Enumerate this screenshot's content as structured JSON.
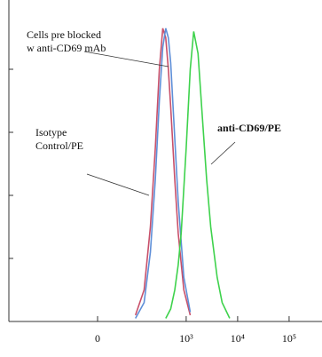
{
  "chart_data": {
    "type": "line",
    "x_scale": "biexponential",
    "xlim": [
      -300,
      150000
    ],
    "xticks": [
      0,
      {
        "value": 1000,
        "label": "10³"
      },
      {
        "value": 10000,
        "label": "10⁴"
      },
      {
        "value": 100000,
        "label": "10⁵"
      }
    ],
    "ylim": [
      0,
      100
    ],
    "yticks": [
      20,
      40,
      60,
      80
    ],
    "series": [
      {
        "name": "Isotype Control/PE",
        "color": "#c8506a",
        "x": [
          100,
          150,
          200,
          250,
          300,
          350,
          400,
          450,
          500,
          600,
          700,
          900,
          1200
        ],
        "values": [
          2,
          10,
          30,
          55,
          80,
          93,
          90,
          80,
          68,
          45,
          28,
          10,
          2
        ]
      },
      {
        "name": "Cells pre blocked w anti-CD69 mAb",
        "color": "#5f8fd8",
        "x": [
          100,
          150,
          200,
          250,
          300,
          350,
          400,
          450,
          500,
          600,
          700,
          900,
          1200
        ],
        "values": [
          1,
          6,
          22,
          45,
          70,
          87,
          93,
          90,
          82,
          58,
          38,
          14,
          3
        ]
      },
      {
        "name": "anti-CD69/PE",
        "color": "#3ed24c",
        "x": [
          400,
          500,
          600,
          700,
          800,
          1000,
          1200,
          1400,
          1700,
          2000,
          2500,
          3000,
          4000,
          5000,
          7000
        ],
        "values": [
          1,
          4,
          10,
          18,
          28,
          55,
          80,
          92,
          85,
          68,
          45,
          30,
          14,
          6,
          1
        ]
      }
    ],
    "annotations": [
      {
        "lines": [
          "Cells pre blocked",
          "w anti-CD69 mAb"
        ]
      },
      {
        "lines": [
          "anti-CD69/PE"
        ]
      },
      {
        "lines": [
          "Isotype",
          "Control/PE"
        ]
      }
    ]
  }
}
